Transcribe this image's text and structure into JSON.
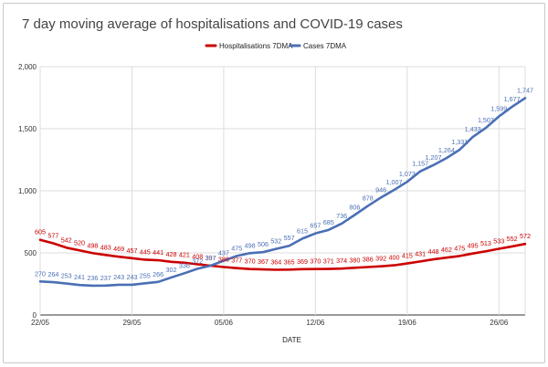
{
  "chart_data": {
    "type": "line",
    "title": "7 day moving average of hospitalisations and COVID-19 cases",
    "xlabel": "DATE",
    "ylabel": "",
    "ylim": [
      0,
      2000
    ],
    "y_ticks": [
      "0",
      "500",
      "1,000",
      "1,500",
      "2,000"
    ],
    "y_tick_values": [
      0,
      500,
      1000,
      1500,
      2000
    ],
    "x_tick_labels": [
      "22/05",
      "29/05",
      "05/06",
      "12/06",
      "19/06",
      "26/06"
    ],
    "x_tick_index": [
      0,
      7,
      14,
      21,
      28,
      35
    ],
    "legend_position": "top-center",
    "series": [
      {
        "name": "Hospitalisations 7DMA",
        "color": "#cc0000",
        "values": [
          605,
          577,
          542,
          520,
          498,
          483,
          469,
          457,
          445,
          441,
          428,
          421,
          408,
          397,
          386,
          377,
          370,
          367,
          364,
          365,
          369,
          370,
          371,
          374,
          380,
          386,
          392,
          400,
          415,
          431,
          448,
          462,
          475,
          495,
          513,
          533,
          552,
          572
        ],
        "labels": [
          "605",
          "577",
          "542",
          "520",
          "498",
          "483",
          "469",
          "457",
          "445",
          "441",
          "428",
          "421",
          "408",
          "397",
          "386",
          "377",
          "370",
          "367",
          "364",
          "365",
          "369",
          "370",
          "371",
          "374",
          "380",
          "386",
          "392",
          "400",
          "415",
          "431",
          "448",
          "462",
          "475",
          "495",
          "513",
          "533",
          "552",
          "572"
        ]
      },
      {
        "name": "Cases 7DMA",
        "color": "#4a6fb5",
        "values": [
          270,
          264,
          253,
          241,
          236,
          237,
          243,
          243,
          255,
          266,
          302,
          336,
          372,
          397,
          437,
          475,
          498,
          506,
          532,
          557,
          615,
          657,
          685,
          736,
          806,
          878,
          946,
          1007,
          1073,
          1157,
          1207,
          1264,
          1331,
          1433,
          1507,
          1599,
          1677,
          1747
        ],
        "labels": [
          "270",
          "264",
          "253",
          "241",
          "236",
          "237",
          "243",
          "243",
          "255",
          "266",
          "302",
          "336",
          "372",
          "397",
          "437",
          "475",
          "498",
          "506",
          "532",
          "557",
          "615",
          "657",
          "685",
          "736",
          "806",
          "878",
          "946",
          "1,007",
          "1,073",
          "1,157",
          "1,207",
          "1,264",
          "1,331",
          "1,433",
          "1,507",
          "1,599",
          "1,677",
          "1,747"
        ]
      }
    ]
  }
}
